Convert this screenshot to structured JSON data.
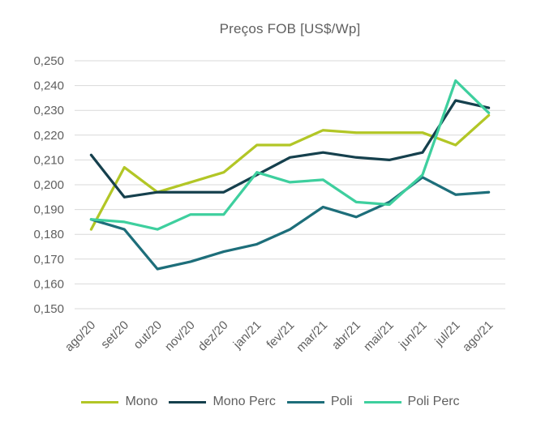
{
  "chart_data": {
    "type": "line",
    "title": "Preços FOB [US$/Wp]",
    "categories": [
      "ago/20",
      "set/20",
      "out/20",
      "nov/20",
      "dez/20",
      "jan/21",
      "fev/21",
      "mar/21",
      "abr/21",
      "mai/21",
      "jun/21",
      "jul/21",
      "ago/21"
    ],
    "series": [
      {
        "name": "Mono",
        "color": "#b2c626",
        "values": [
          0.182,
          0.207,
          0.197,
          0.201,
          0.205,
          0.216,
          0.216,
          0.222,
          0.221,
          0.221,
          0.221,
          0.216,
          0.228
        ]
      },
      {
        "name": "Mono Perc",
        "color": "#15404d",
        "values": [
          0.212,
          0.195,
          0.197,
          0.197,
          0.197,
          0.204,
          0.211,
          0.213,
          0.211,
          0.21,
          0.213,
          0.234,
          0.231
        ]
      },
      {
        "name": "Poli",
        "color": "#1d6e7a",
        "values": [
          0.186,
          0.182,
          0.166,
          0.169,
          0.173,
          0.176,
          0.182,
          0.191,
          0.187,
          0.193,
          0.203,
          0.196,
          0.197
        ]
      },
      {
        "name": "Poli Perc",
        "color": "#3ecf9e",
        "values": [
          0.186,
          0.185,
          0.182,
          0.188,
          0.188,
          0.205,
          0.201,
          0.202,
          0.193,
          0.192,
          0.204,
          0.242,
          0.229
        ]
      }
    ],
    "xlabel": "",
    "ylabel": "",
    "ylim": [
      0.15,
      0.25
    ],
    "ytick_step": 0.01,
    "ytick_labels": [
      "0,150",
      "0,160",
      "0,170",
      "0,180",
      "0,190",
      "0,200",
      "0,210",
      "0,220",
      "0,230",
      "0,240",
      "0,250"
    ],
    "grid": true,
    "legend_position": "bottom",
    "colors": {
      "text": "#5f5f5f",
      "gridline": "#d9d9d9",
      "background": "#ffffff"
    }
  }
}
